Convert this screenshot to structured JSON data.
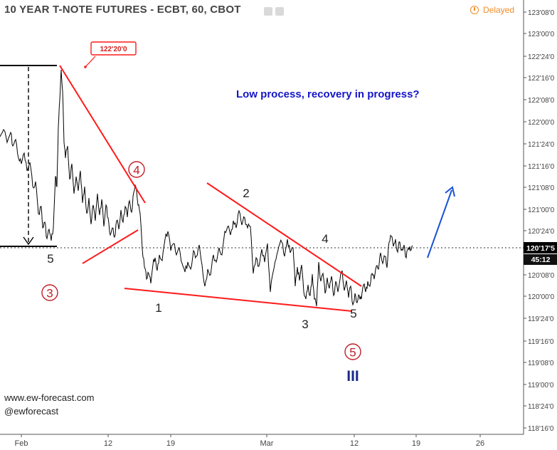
{
  "header": {
    "title": "10 YEAR T-NOTE FUTURES - ECBT, 60, CBOT",
    "delayed_label": "Delayed"
  },
  "watermark": {
    "site": "www.ew-forecast.com",
    "handle": "@ewforecast"
  },
  "chart_data": {
    "type": "line",
    "y_ticks": [
      "123'08'0",
      "123'00'0",
      "122'24'0",
      "122'16'0",
      "122'08'0",
      "122'00'0",
      "121'24'0",
      "121'16'0",
      "121'08'0",
      "121'00'0",
      "120'24'0",
      "120'08'0",
      "120'00'0",
      "119'24'0",
      "119'16'0",
      "119'08'0",
      "119'00'0",
      "118'24'0",
      "118'16'0"
    ],
    "x_ticks": [
      "Feb",
      "12",
      "19",
      "Mar",
      "12",
      "19",
      "26"
    ],
    "last_price": "120'17'5",
    "countdown": "45:12",
    "callout": "122'20'0",
    "headline": "Low process, recovery in progress?",
    "wave_labels": {
      "five_a": "5",
      "three_circ": "3",
      "four_circ": "4",
      "one": "1",
      "two": "2",
      "three": "3",
      "four": "4",
      "five": "5",
      "five_circ": "5",
      "roman_three": "III"
    },
    "colors": {
      "price": "#000000",
      "trend": "#ff1a1a",
      "label_red": "#c0202a",
      "headline": "#1515c8",
      "arrow": "#1a52d6",
      "roman": "#1a2a8a"
    },
    "price_path": [
      [
        0,
        192
      ],
      [
        5,
        182
      ],
      [
        10,
        200
      ],
      [
        15,
        186
      ],
      [
        18,
        205
      ],
      [
        22,
        196
      ],
      [
        26,
        222
      ],
      [
        30,
        230
      ],
      [
        34,
        215
      ],
      [
        38,
        240
      ],
      [
        42,
        228
      ],
      [
        46,
        262
      ],
      [
        50,
        255
      ],
      [
        54,
        300
      ],
      [
        58,
        290
      ],
      [
        60,
        320
      ],
      [
        63,
        312
      ],
      [
        66,
        335
      ],
      [
        69,
        322
      ],
      [
        72,
        338
      ],
      [
        75,
        320
      ],
      [
        78,
        248
      ],
      [
        80,
        262
      ],
      [
        82,
        178
      ],
      [
        84,
        140
      ],
      [
        86,
        98
      ],
      [
        88,
        128
      ],
      [
        90,
        200
      ],
      [
        92,
        222
      ],
      [
        95,
        205
      ],
      [
        98,
        252
      ],
      [
        101,
        230
      ],
      [
        104,
        272
      ],
      [
        107,
        248
      ],
      [
        110,
        268
      ],
      [
        113,
        240
      ],
      [
        116,
        285
      ],
      [
        119,
        262
      ],
      [
        122,
        300
      ],
      [
        125,
        278
      ],
      [
        128,
        315
      ],
      [
        131,
        288
      ],
      [
        134,
        310
      ],
      [
        137,
        272
      ],
      [
        140,
        302
      ],
      [
        143,
        280
      ],
      [
        146,
        318
      ],
      [
        149,
        288
      ],
      [
        152,
        306
      ],
      [
        155,
        330
      ],
      [
        158,
        320
      ],
      [
        161,
        333
      ],
      [
        164,
        310
      ],
      [
        167,
        322
      ],
      [
        170,
        295
      ],
      [
        173,
        312
      ],
      [
        176,
        290
      ],
      [
        179,
        305
      ],
      [
        182,
        282
      ],
      [
        185,
        298
      ],
      [
        188,
        270
      ],
      [
        191,
        262
      ],
      [
        194,
        288
      ],
      [
        197,
        300
      ],
      [
        200,
        350
      ],
      [
        203,
        375
      ],
      [
        206,
        392
      ],
      [
        209,
        384
      ],
      [
        212,
        398
      ],
      [
        215,
        372
      ],
      [
        218,
        362
      ],
      [
        221,
        380
      ],
      [
        224,
        358
      ],
      [
        228,
        366
      ],
      [
        232,
        336
      ],
      [
        236,
        325
      ],
      [
        240,
        352
      ],
      [
        244,
        342
      ],
      [
        248,
        358
      ],
      [
        252,
        348
      ],
      [
        256,
        370
      ],
      [
        260,
        382
      ],
      [
        264,
        368
      ],
      [
        268,
        378
      ],
      [
        272,
        352
      ],
      [
        276,
        360
      ],
      [
        280,
        344
      ],
      [
        284,
        372
      ],
      [
        288,
        402
      ],
      [
        292,
        378
      ],
      [
        296,
        386
      ],
      [
        300,
        358
      ],
      [
        304,
        368
      ],
      [
        308,
        348
      ],
      [
        312,
        358
      ],
      [
        316,
        325
      ],
      [
        320,
        318
      ],
      [
        324,
        330
      ],
      [
        328,
        310
      ],
      [
        332,
        320
      ],
      [
        336,
        296
      ],
      [
        340,
        316
      ],
      [
        344,
        306
      ],
      [
        348,
        320
      ],
      [
        352,
        318
      ],
      [
        356,
        384
      ],
      [
        360,
        362
      ],
      [
        364,
        374
      ],
      [
        368,
        350
      ],
      [
        372,
        368
      ],
      [
        376,
        342
      ],
      [
        380,
        410
      ],
      [
        384,
        382
      ],
      [
        388,
        364
      ],
      [
        392,
        346
      ],
      [
        396,
        340
      ],
      [
        400,
        360
      ],
      [
        404,
        336
      ],
      [
        408,
        355
      ],
      [
        412,
        348
      ],
      [
        415,
        402
      ],
      [
        418,
        375
      ],
      [
        421,
        394
      ],
      [
        424,
        372
      ],
      [
        427,
        410
      ],
      [
        430,
        420
      ],
      [
        433,
        400
      ],
      [
        436,
        415
      ],
      [
        439,
        385
      ],
      [
        442,
        420
      ],
      [
        445,
        430
      ],
      [
        448,
        368
      ],
      [
        451,
        395
      ],
      [
        454,
        384
      ],
      [
        457,
        412
      ],
      [
        460,
        390
      ],
      [
        463,
        405
      ],
      [
        466,
        388
      ],
      [
        469,
        415
      ],
      [
        472,
        395
      ],
      [
        475,
        410
      ],
      [
        478,
        392
      ],
      [
        481,
        380
      ],
      [
        484,
        408
      ],
      [
        487,
        394
      ],
      [
        490,
        418
      ],
      [
        493,
        402
      ],
      [
        496,
        428
      ],
      [
        499,
        412
      ],
      [
        502,
        425
      ],
      [
        505,
        415
      ],
      [
        508,
        420
      ],
      [
        511,
        400
      ],
      [
        514,
        410
      ],
      [
        517,
        395
      ],
      [
        520,
        402
      ],
      [
        523,
        384
      ],
      [
        526,
        392
      ],
      [
        529,
        374
      ],
      [
        532,
        378
      ],
      [
        535,
        355
      ],
      [
        538,
        370
      ],
      [
        541,
        360
      ],
      [
        544,
        376
      ],
      [
        547,
        340
      ],
      [
        550,
        332
      ],
      [
        553,
        346
      ],
      [
        556,
        336
      ],
      [
        559,
        354
      ],
      [
        562,
        340
      ],
      [
        565,
        350
      ],
      [
        568,
        344
      ],
      [
        571,
        362
      ],
      [
        574,
        348
      ],
      [
        577,
        352
      ],
      [
        580,
        345
      ]
    ]
  }
}
